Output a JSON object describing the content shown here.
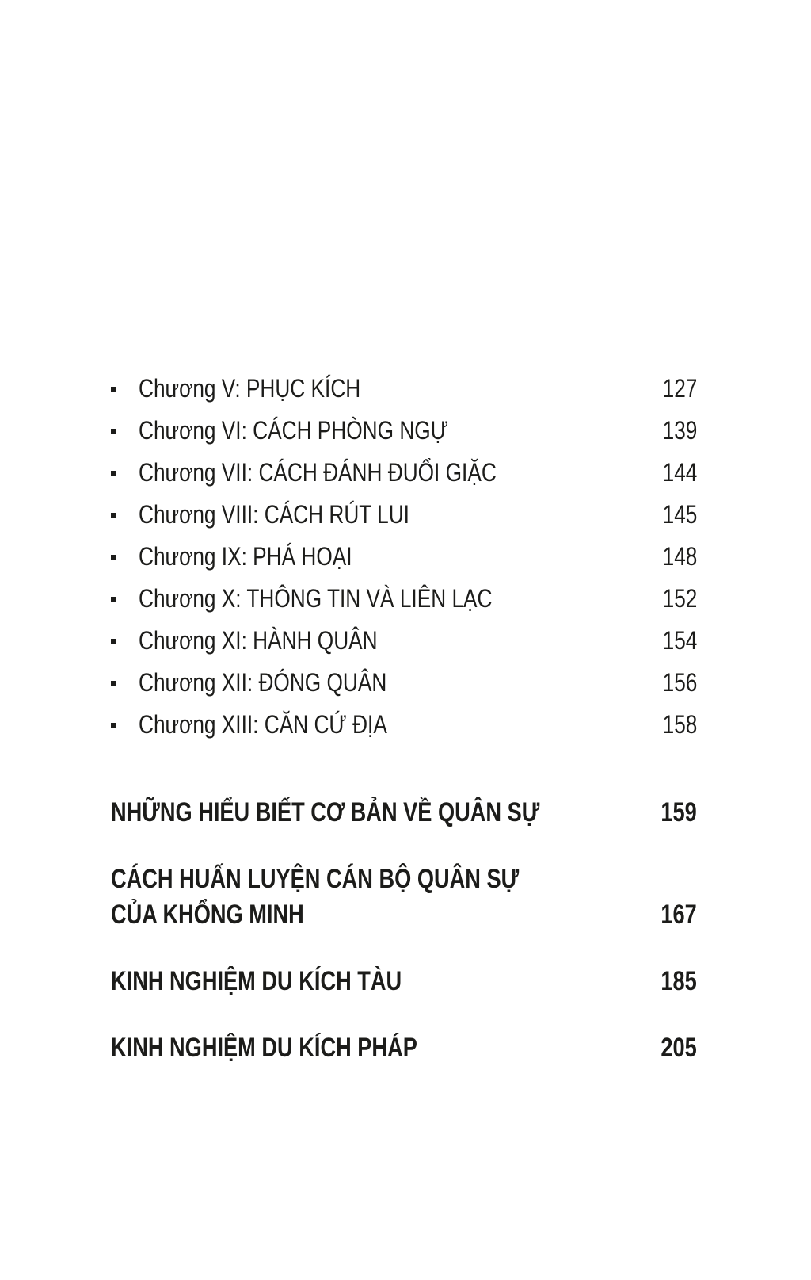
{
  "page": {
    "background_color": "#ffffff",
    "text_color": "#1c1c1a"
  },
  "icons": {
    "bullet": "square-dot"
  },
  "toc": {
    "chapters": [
      {
        "label": "Chương V: PHỤC KÍCH",
        "page": "127"
      },
      {
        "label": "Chương VI: CÁCH PHÒNG NGỰ",
        "page": "139"
      },
      {
        "label": "Chương VII: CÁCH ĐÁNH ĐUỔI GIẶC",
        "page": "144"
      },
      {
        "label": "Chương VIII: CÁCH RÚT LUI",
        "page": "145"
      },
      {
        "label": "Chương IX: PHÁ HOẠI",
        "page": "148"
      },
      {
        "label": "Chương X: THÔNG TIN VÀ LIÊN LẠC",
        "page": "152"
      },
      {
        "label": "Chương XI: HÀNH QUÂN",
        "page": "154"
      },
      {
        "label": "Chương XII: ĐÓNG QUÂN",
        "page": "156"
      },
      {
        "label": "Chương XIII: CĂN CỨ ĐỊA",
        "page": "158"
      }
    ],
    "sections": [
      {
        "lines": [
          "NHỮNG HIỂU BIẾT CƠ BẢN VỀ QUÂN SỰ"
        ],
        "page": "159"
      },
      {
        "lines": [
          "CÁCH HUẤN LUYỆN CÁN BỘ QUÂN SỰ",
          "CỦA KHỔNG MINH"
        ],
        "page": "167"
      },
      {
        "lines": [
          "KINH NGHIỆM DU KÍCH TÀU"
        ],
        "page": "185"
      },
      {
        "lines": [
          "KINH NGHIỆM DU KÍCH PHÁP"
        ],
        "page": "205"
      }
    ]
  }
}
